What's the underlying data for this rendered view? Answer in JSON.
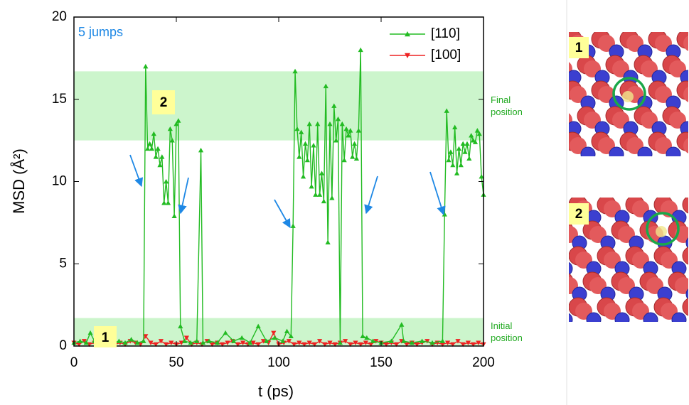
{
  "chart_data": {
    "type": "line",
    "xlabel": "t (ps)",
    "ylabel": "MSD (Å²)",
    "xlim": [
      0,
      200
    ],
    "xticks": [
      0,
      50,
      100,
      150,
      200
    ],
    "ylim": [
      0,
      20
    ],
    "yticks": [
      0,
      5,
      10,
      15,
      20
    ],
    "legend": "top-right",
    "annotations": {
      "jumps": "5 jumps",
      "label1": "1",
      "label2": "2"
    },
    "bands": [
      {
        "range": [
          12.5,
          16.7
        ],
        "label": "Final position",
        "color": "#ccf5cc"
      },
      {
        "range": [
          0,
          1.7
        ],
        "label": "Initial position",
        "color": "#ccf5cc"
      }
    ],
    "series": [
      {
        "name": "[110]",
        "color": "#22bb22",
        "marker": "up",
        "x": [
          0,
          3,
          6,
          8,
          10,
          13,
          16,
          19,
          22,
          25,
          28,
          31,
          34,
          35,
          36,
          37,
          38,
          39,
          40,
          41,
          42,
          43,
          44,
          45,
          46,
          47,
          48,
          49,
          50,
          51,
          52,
          54,
          57,
          60,
          62,
          63,
          66,
          70,
          74,
          78,
          82,
          86,
          90,
          94,
          98,
          102,
          104,
          106,
          107,
          108,
          109,
          110,
          111,
          112,
          113,
          114,
          115,
          116,
          117,
          118,
          119,
          120,
          121,
          122,
          123,
          124,
          125,
          126,
          127,
          128,
          129,
          130,
          131,
          132,
          133,
          134,
          135,
          136,
          137,
          138,
          139,
          140,
          141,
          143,
          146,
          150,
          155,
          160,
          161,
          165,
          170,
          175,
          180,
          181,
          182,
          183,
          184,
          185,
          186,
          187,
          188,
          189,
          190,
          191,
          192,
          193,
          194,
          195,
          196,
          197,
          198,
          199,
          200
        ],
        "values": [
          0.2,
          0.3,
          0.2,
          0.8,
          0.3,
          0.2,
          0.5,
          0.2,
          0.3,
          0.2,
          0.4,
          0.2,
          0.3,
          17.0,
          12,
          12.3,
          12,
          12.9,
          11.5,
          12,
          11,
          11.5,
          8.7,
          10,
          8.7,
          13.2,
          12.5,
          7.9,
          13.5,
          13.7,
          1.2,
          0.3,
          0.2,
          0.3,
          11.9,
          0.2,
          0.3,
          0.2,
          0.8,
          0.3,
          0.5,
          0.2,
          1.2,
          0.3,
          0.5,
          0.3,
          0.9,
          0.6,
          7.3,
          16.7,
          13.2,
          11.5,
          13,
          10.3,
          12.3,
          11.3,
          13.5,
          9.7,
          12.2,
          9.2,
          13.5,
          9.2,
          10.5,
          8.8,
          15.8,
          6.3,
          13.5,
          9,
          14.6,
          12.5,
          13.8,
          0.2,
          13.5,
          11.3,
          13.2,
          12.8,
          13.1,
          11.5,
          12.3,
          11.4,
          13.1,
          18.0,
          0.6,
          0.5,
          0.3,
          0.2,
          0.3,
          1.3,
          0.3,
          0.2,
          0.3,
          0.2,
          0.3,
          8,
          14.3,
          11.3,
          11.8,
          11,
          13.3,
          10.5,
          12,
          11,
          12.3,
          11.8,
          12.3,
          11.4,
          12.8,
          12.5,
          12.4,
          13.1,
          12.9,
          10.3,
          9.2
        ]
      },
      {
        "name": "[100]",
        "color": "#ee2222",
        "marker": "down",
        "x": [
          0,
          2.5,
          5,
          7.5,
          10,
          12.5,
          15,
          17.5,
          20,
          22.5,
          25,
          27.5,
          30,
          32.5,
          35,
          37.5,
          40,
          42.5,
          45,
          47.5,
          50,
          52.5,
          55,
          57.5,
          60,
          62.5,
          65,
          67.5,
          70,
          72.5,
          75,
          77.5,
          80,
          82.5,
          85,
          87.5,
          90,
          92.5,
          95,
          97.5,
          100,
          102.5,
          105,
          107.5,
          110,
          112.5,
          115,
          117.5,
          120,
          122.5,
          125,
          127.5,
          130,
          132.5,
          135,
          137.5,
          140,
          142.5,
          145,
          147.5,
          150,
          152.5,
          155,
          157.5,
          160,
          162.5,
          165,
          167.5,
          170,
          172.5,
          175,
          177.5,
          180,
          182.5,
          185,
          187.5,
          190,
          192.5,
          195,
          197.5,
          200
        ],
        "values": [
          0.2,
          0.1,
          0.3,
          0.1,
          0.2,
          0.1,
          0.2,
          0.3,
          0.1,
          0.2,
          0.1,
          0.3,
          0.2,
          0.1,
          0.6,
          0.2,
          0.1,
          0.3,
          0.1,
          0.2,
          0.1,
          0.2,
          0.5,
          0.1,
          0.2,
          0.1,
          0.3,
          0.1,
          0.2,
          0.1,
          0.2,
          0.3,
          0.1,
          0.2,
          0.1,
          0.2,
          0.1,
          0.3,
          0.2,
          0.8,
          0.1,
          0.2,
          0.3,
          0.1,
          0.2,
          0.1,
          0.2,
          0.1,
          0.3,
          0.1,
          0.2,
          0.1,
          0.2,
          0.3,
          0.1,
          0.2,
          0.1,
          0.2,
          0.1,
          0.3,
          0.2,
          0.1,
          0.2,
          0.1,
          0.3,
          0.1,
          0.2,
          0.1,
          0.2,
          0.3,
          0.1,
          0.2,
          0.1,
          0.2,
          0.1,
          0.3,
          0.1,
          0.2,
          0.1,
          0.2,
          0.1
        ]
      }
    ]
  },
  "panels": [
    {
      "label": "1"
    },
    {
      "label": "2"
    }
  ]
}
